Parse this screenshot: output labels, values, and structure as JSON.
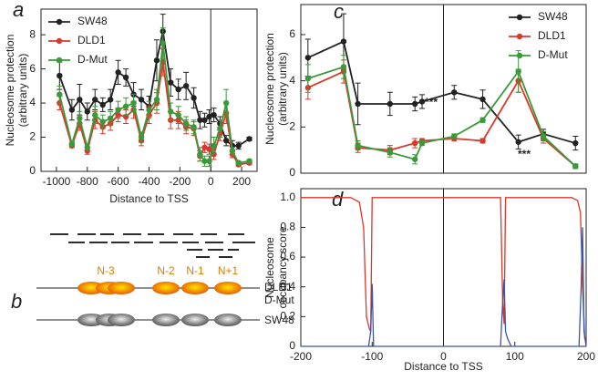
{
  "chart_data": [
    {
      "type": "line",
      "panel": "a",
      "xlabel": "Distance to TSS",
      "ylabel": [
        "Nucleosome protection",
        "(arbitrary units)"
      ],
      "xlim": [
        -1100,
        300
      ],
      "ylim": [
        0,
        9.5
      ],
      "xticks": [
        -1000,
        -800,
        -600,
        -400,
        -200,
        0,
        200
      ],
      "yticks": [
        0,
        2,
        4,
        6,
        8
      ],
      "legend": "upper left",
      "x": [
        -980,
        -900,
        -850,
        -800,
        -750,
        -700,
        -650,
        -600,
        -550,
        -500,
        -450,
        -400,
        -350,
        -310,
        -260,
        -210,
        -160,
        -110,
        -70,
        -40,
        -10,
        20,
        60,
        100,
        140,
        180,
        250
      ],
      "series": [
        {
          "name": "SW48",
          "color": "#222222",
          "values": [
            5.6,
            3.6,
            4.2,
            3.5,
            4.2,
            3.9,
            4.2,
            5.8,
            5.5,
            4.5,
            4.2,
            3.8,
            6.5,
            8.2,
            5.2,
            4.8,
            5.0,
            4.3,
            3.0,
            3.0,
            3.2,
            3.3,
            2.8,
            1.8,
            1.5,
            1.5,
            1.9
          ],
          "errors": [
            0.8,
            0.6,
            0.9,
            0.5,
            0.6,
            0.4,
            0.6,
            0.7,
            0.5,
            0.7,
            0.6,
            0.6,
            1.2,
            1.0,
            0.8,
            0.6,
            0.8,
            0.6,
            0.5,
            0.4,
            0.4,
            0.4,
            0.4,
            0.3,
            0.3,
            0.2,
            0.1
          ]
        },
        {
          "name": "DLD1",
          "color": "#d9382a",
          "values": [
            4.0,
            1.5,
            2.8,
            1.2,
            3.0,
            2.6,
            2.8,
            3.3,
            3.2,
            3.6,
            1.8,
            3.3,
            4.0,
            6.4,
            3.0,
            3.0,
            2.6,
            2.5,
            0.9,
            1.4,
            1.3,
            1.0,
            2.2,
            3.4,
            1.0,
            0.4,
            0.5
          ],
          "errors": [
            0.4,
            0.1,
            0.4,
            0.2,
            0.5,
            0.4,
            0.4,
            0.4,
            0.4,
            0.5,
            0.3,
            0.5,
            0.6,
            0.8,
            0.5,
            0.5,
            0.4,
            0.4,
            0.3,
            0.3,
            0.3,
            0.3,
            0.4,
            0.6,
            0.2,
            0.1,
            0.1
          ]
        },
        {
          "name": "D-Mut",
          "color": "#3a9a3a",
          "values": [
            4.5,
            1.6,
            3.1,
            1.4,
            3.3,
            2.9,
            3.1,
            3.6,
            3.8,
            4.0,
            2.0,
            3.6,
            4.2,
            7.5,
            3.5,
            3.3,
            2.8,
            2.6,
            1.0,
            0.6,
            0.6,
            1.5,
            2.5,
            4.0,
            1.2,
            0.5,
            0.6
          ],
          "errors": [
            0.5,
            0.1,
            0.4,
            0.2,
            0.5,
            0.4,
            0.4,
            0.5,
            0.5,
            0.5,
            0.3,
            0.5,
            0.6,
            0.9,
            0.5,
            0.5,
            0.4,
            0.4,
            0.4,
            0.3,
            0.3,
            0.5,
            0.5,
            0.8,
            0.2,
            0.1,
            0.1
          ]
        }
      ]
    },
    {
      "type": "line",
      "panel": "c",
      "ylabel": [
        "Nucleosome protection",
        "(arbitrary units)"
      ],
      "xlim": [
        -200,
        200
      ],
      "ylim": [
        0,
        7.3
      ],
      "yticks": [
        0,
        2,
        4,
        6
      ],
      "legend": "upper right",
      "annotations": [
        "***",
        "***"
      ],
      "x": [
        -190,
        -140,
        -120,
        -75,
        -40,
        -30,
        15,
        55,
        105,
        140,
        185
      ],
      "series": [
        {
          "name": "SW48",
          "color": "#222222",
          "values": [
            5.0,
            5.7,
            3.0,
            3.0,
            3.0,
            3.1,
            3.5,
            3.2,
            1.35,
            1.7,
            1.3
          ],
          "errors": [
            0.8,
            1.2,
            0.9,
            0.5,
            0.3,
            0.3,
            0.3,
            0.4,
            0.3,
            0.2,
            0.3
          ]
        },
        {
          "name": "DLD1",
          "color": "#d9382a",
          "values": [
            3.7,
            4.4,
            1.1,
            1.0,
            1.3,
            1.4,
            1.5,
            1.4,
            4.0,
            1.5,
            0.3
          ],
          "errors": [
            0.5,
            0.5,
            0.2,
            0.2,
            0.2,
            0.1,
            0.1,
            0.1,
            0.5,
            0.2,
            0.1
          ]
        },
        {
          "name": "D-Mut",
          "color": "#3a9a3a",
          "values": [
            4.1,
            4.6,
            1.2,
            0.9,
            0.6,
            1.3,
            1.6,
            2.3,
            4.4,
            1.6,
            0.3
          ],
          "errors": [
            0.6,
            0.5,
            0.2,
            0.2,
            0.2,
            0.1,
            0.1,
            0.1,
            0.9,
            0.2,
            0.1
          ]
        }
      ]
    },
    {
      "type": "line",
      "panel": "d",
      "xlabel": "Distance to TSS",
      "ylabel": [
        "Nucleosome",
        "occupancy score"
      ],
      "xlim": [
        -200,
        200
      ],
      "ylim": [
        0,
        1.06
      ],
      "xticks": [
        -200,
        -100,
        0,
        100,
        200
      ],
      "yticks": [
        0,
        0.2,
        0.4,
        0.6,
        0.8,
        {
          "value": 1,
          "label": "1.0"
        }
      ],
      "series": [
        {
          "color": "#d9382a",
          "x": [
            -200,
            -130,
            -118,
            -112,
            -108,
            -104,
            -102,
            -100,
            80,
            83,
            85,
            87,
            90,
            180,
            188,
            192,
            195,
            198,
            200
          ],
          "values": [
            1.0,
            1.0,
            0.97,
            0.8,
            0.2,
            0.12,
            0.1,
            1.0,
            1.0,
            0.3,
            0.15,
            1.0,
            1.0,
            1.0,
            0.98,
            0.9,
            0.4,
            0.05,
            0.05
          ]
        },
        {
          "color": "#3a55b0",
          "x": [
            -200,
            -105,
            -102,
            -100,
            -98,
            80,
            83,
            85,
            87,
            90,
            95,
            190,
            193,
            195,
            197,
            200
          ],
          "values": [
            0,
            0,
            0.1,
            0.42,
            0,
            0,
            0.3,
            0.45,
            0.1,
            0.05,
            0,
            0,
            0.4,
            0.8,
            0.1,
            0
          ]
        }
      ]
    }
  ],
  "diagram": {
    "panel": "b",
    "nucleosomes": [
      "N-3",
      "N-2",
      "N-1",
      "N+1"
    ],
    "tracks": [
      "DLD1",
      "D-Mut",
      "SW48"
    ]
  }
}
